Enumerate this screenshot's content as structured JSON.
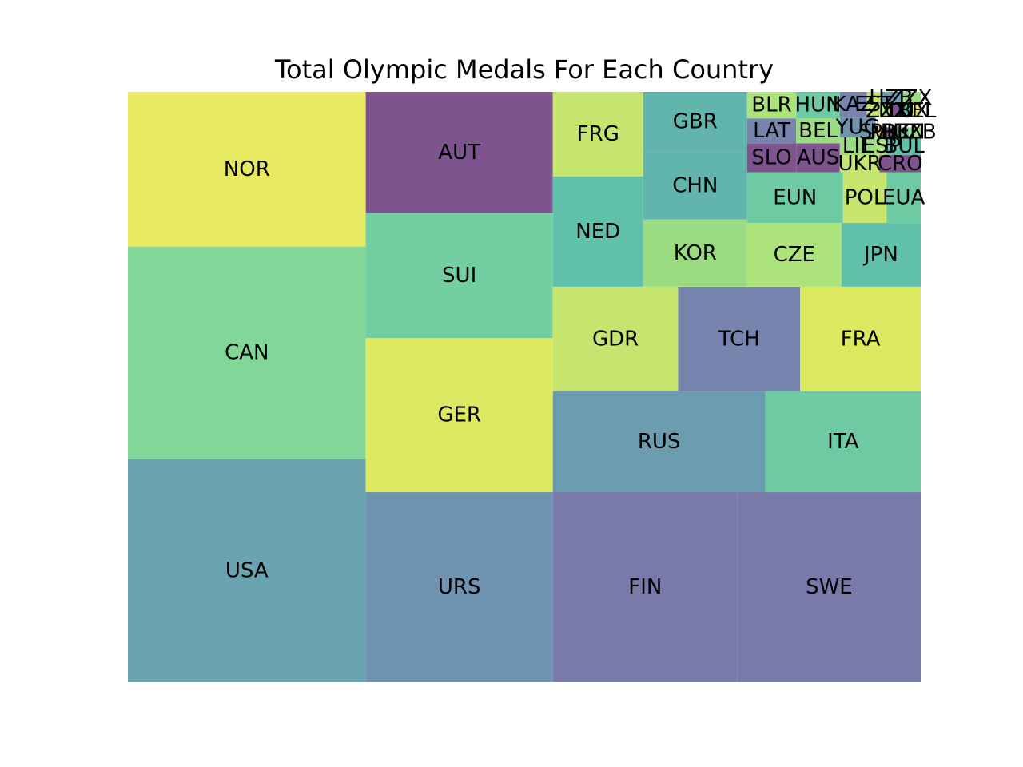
{
  "chart_data": {
    "type": "treemap",
    "title": "Total Olympic Medals For Each Country",
    "xlim": [
      0,
      100
    ],
    "ylim": [
      0,
      100
    ],
    "axes_visible": false,
    "grid": false,
    "cells": [
      {
        "label": "USA",
        "x": 0.0,
        "y": 0.0,
        "w": 30.0,
        "h": 37.8,
        "color": "#69a4b0"
      },
      {
        "label": "CAN",
        "x": 0.0,
        "y": 37.8,
        "w": 30.0,
        "h": 36.0,
        "color": "#82d697"
      },
      {
        "label": "NOR",
        "x": 0.0,
        "y": 73.8,
        "w": 30.0,
        "h": 26.2,
        "color": "#e7ea60"
      },
      {
        "label": "URS",
        "x": 30.0,
        "y": 0.0,
        "w": 23.6,
        "h": 32.2,
        "color": "#7093b0"
      },
      {
        "label": "GER",
        "x": 30.0,
        "y": 32.2,
        "w": 23.6,
        "h": 26.1,
        "color": "#dbe860"
      },
      {
        "label": "SUI",
        "x": 30.0,
        "y": 58.3,
        "w": 23.6,
        "h": 21.2,
        "color": "#73cea2"
      },
      {
        "label": "AUT",
        "x": 30.0,
        "y": 79.5,
        "w": 23.6,
        "h": 20.5,
        "color": "#7d548d"
      },
      {
        "label": "FIN",
        "x": 53.6,
        "y": 0.0,
        "w": 23.3,
        "h": 32.2,
        "color": "#797aaa"
      },
      {
        "label": "SWE",
        "x": 76.9,
        "y": 0.0,
        "w": 23.1,
        "h": 32.2,
        "color": "#797aaa"
      },
      {
        "label": "RUS",
        "x": 53.6,
        "y": 32.2,
        "w": 26.8,
        "h": 17.1,
        "color": "#6b9cb0"
      },
      {
        "label": "ITA",
        "x": 80.4,
        "y": 32.2,
        "w": 19.6,
        "h": 17.1,
        "color": "#6ecaa3"
      },
      {
        "label": "GDR",
        "x": 53.6,
        "y": 49.3,
        "w": 15.8,
        "h": 17.7,
        "color": "#c6e56e"
      },
      {
        "label": "TCH",
        "x": 69.4,
        "y": 49.3,
        "w": 15.4,
        "h": 17.7,
        "color": "#7684ae"
      },
      {
        "label": "FRA",
        "x": 84.8,
        "y": 49.3,
        "w": 15.2,
        "h": 17.7,
        "color": "#dbe860"
      },
      {
        "label": "NED",
        "x": 53.6,
        "y": 67.0,
        "w": 11.4,
        "h": 18.7,
        "color": "#61c0aa"
      },
      {
        "label": "FRG",
        "x": 53.6,
        "y": 85.7,
        "w": 11.4,
        "h": 14.3,
        "color": "#c6e56e"
      },
      {
        "label": "KOR",
        "x": 65.0,
        "y": 67.0,
        "w": 13.1,
        "h": 11.4,
        "color": "#9bdb82"
      },
      {
        "label": "CHN",
        "x": 65.0,
        "y": 78.4,
        "w": 13.1,
        "h": 11.4,
        "color": "#62b5ad"
      },
      {
        "label": "GBR",
        "x": 65.0,
        "y": 89.8,
        "w": 13.1,
        "h": 10.2,
        "color": "#62b5ad"
      },
      {
        "label": "CZE",
        "x": 78.1,
        "y": 67.0,
        "w": 11.9,
        "h": 10.8,
        "color": "#ace37b"
      },
      {
        "label": "JPN",
        "x": 90.0,
        "y": 67.0,
        "w": 10.0,
        "h": 10.8,
        "color": "#61c0aa"
      },
      {
        "label": "EUN",
        "x": 78.1,
        "y": 77.8,
        "w": 12.1,
        "h": 8.6,
        "color": "#6ecaa3"
      },
      {
        "label": "POL",
        "x": 90.2,
        "y": 77.8,
        "w": 5.5,
        "h": 8.6,
        "color": "#c6e56e"
      },
      {
        "label": "EUA",
        "x": 95.7,
        "y": 77.8,
        "w": 4.3,
        "h": 8.6,
        "color": "#6ecaa3"
      },
      {
        "label": "SLO",
        "x": 78.1,
        "y": 86.4,
        "w": 6.2,
        "h": 4.9,
        "color": "#7d548d"
      },
      {
        "label": "AUS",
        "x": 84.3,
        "y": 86.4,
        "w": 5.5,
        "h": 4.9,
        "color": "#7d548d"
      },
      {
        "label": "LAT",
        "x": 78.1,
        "y": 91.3,
        "w": 6.2,
        "h": 4.2,
        "color": "#7684ae"
      },
      {
        "label": "BLR",
        "x": 78.1,
        "y": 95.5,
        "w": 6.2,
        "h": 4.5,
        "color": "#ace37b"
      },
      {
        "label": "BEL",
        "x": 84.3,
        "y": 91.3,
        "w": 5.5,
        "h": 4.2,
        "color": "#9bdb82"
      },
      {
        "label": "HUN",
        "x": 84.3,
        "y": 95.5,
        "w": 5.5,
        "h": 4.5,
        "color": "#6ecaa3"
      },
      {
        "label": "UKR",
        "x": 89.8,
        "y": 86.4,
        "w": 5.0,
        "h": 2.9,
        "color": "#c6e56e"
      },
      {
        "label": "CRO",
        "x": 94.8,
        "y": 86.4,
        "w": 5.2,
        "h": 2.9,
        "color": "#7d548d"
      },
      {
        "label": "LIE",
        "x": 89.8,
        "y": 89.3,
        "w": 4.5,
        "h": 3.0,
        "color": "#9bdb82"
      },
      {
        "label": "ESP",
        "x": 94.3,
        "y": 89.3,
        "w": 1.5,
        "h": 3.0,
        "color": "#ace37b"
      },
      {
        "label": "BUL",
        "x": 95.8,
        "y": 89.3,
        "w": 4.2,
        "h": 3.0,
        "color": "#61c0aa"
      },
      {
        "label": "YUG",
        "x": 89.8,
        "y": 92.3,
        "w": 4.5,
        "h": 3.4,
        "color": "#7093b0"
      },
      {
        "label": "SVK",
        "x": 94.3,
        "y": 92.3,
        "w": 1.0,
        "h": 1.7,
        "color": "#e7ea60"
      },
      {
        "label": "PRK",
        "x": 95.3,
        "y": 92.3,
        "w": 1.7,
        "h": 1.7,
        "color": "#7d548d"
      },
      {
        "label": "DEN",
        "x": 97.0,
        "y": 92.3,
        "w": 1.5,
        "h": 1.7,
        "color": "#6ecaa3"
      },
      {
        "label": "UZB",
        "x": 98.5,
        "y": 92.3,
        "w": 1.5,
        "h": 1.7,
        "color": "#9bdb82"
      },
      {
        "label": "KAZ",
        "x": 89.8,
        "y": 95.7,
        "w": 3.4,
        "h": 4.3,
        "color": "#7684ae"
      },
      {
        "label": "EST",
        "x": 93.2,
        "y": 95.7,
        "w": 1.8,
        "h": 4.3,
        "color": "#c6e56e"
      },
      {
        "label": "ZZX",
        "x": 95.0,
        "y": 95.7,
        "w": 1.5,
        "h": 2.1,
        "color": "#ace37b"
      },
      {
        "label": "NZL",
        "x": 96.5,
        "y": 95.7,
        "w": 1.5,
        "h": 2.1,
        "color": "#7d548d"
      },
      {
        "label": "LUX",
        "x": 98.0,
        "y": 95.7,
        "w": 1.0,
        "h": 2.1,
        "color": "#61c0aa"
      },
      {
        "label": "BEL",
        "x": 99.0,
        "y": 95.7,
        "w": 1.0,
        "h": 2.1,
        "color": "#e7ea60"
      },
      {
        "label": "HZB",
        "x": 95.0,
        "y": 97.8,
        "w": 2.5,
        "h": 2.2,
        "color": "#6b9cb0"
      },
      {
        "label": "ZZX",
        "x": 97.5,
        "y": 97.8,
        "w": 2.5,
        "h": 2.2,
        "color": "#9bdb82"
      }
    ]
  }
}
